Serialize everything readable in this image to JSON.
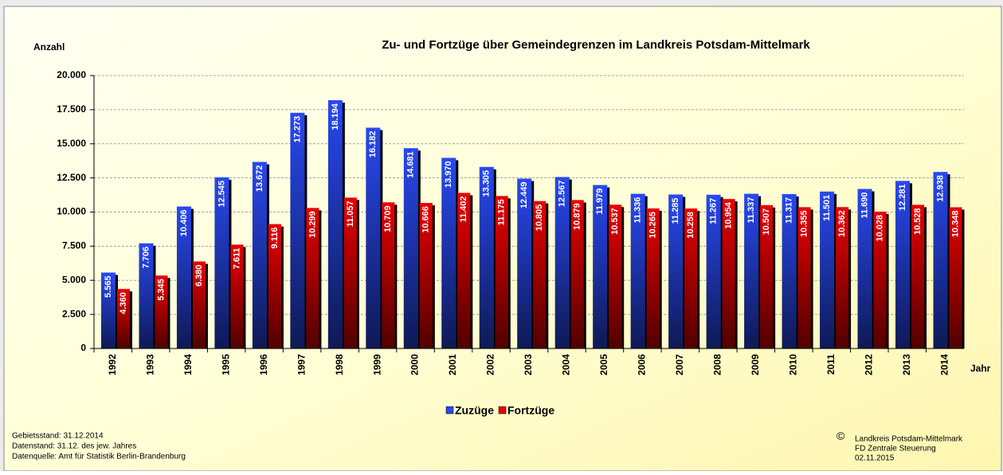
{
  "chart_data": {
    "type": "bar",
    "title": "Zu- und Fortzüge über Gemeindegrenzen im Landkreis Potsdam-Mittelmark",
    "y_label": "Anzahl",
    "x_label": "Jahr",
    "categories": [
      "1992",
      "1993",
      "1994",
      "1995",
      "1996",
      "1997",
      "1998",
      "1999",
      "2000",
      "2001",
      "2002",
      "2003",
      "2004",
      "2005",
      "2006",
      "2007",
      "2008",
      "2009",
      "2010",
      "2011",
      "2012",
      "2013",
      "2014"
    ],
    "series": [
      {
        "name": "Zuzüge",
        "color": "#2848f0",
        "values": [
          5565,
          7706,
          10406,
          12545,
          13672,
          17273,
          18194,
          16182,
          14681,
          13970,
          13305,
          12449,
          12567,
          11979,
          11336,
          11285,
          11267,
          11337,
          11317,
          11501,
          11690,
          12281,
          12938
        ],
        "value_labels": [
          "5.565",
          "7.706",
          "10.406",
          "12.545",
          "13.672",
          "17.273",
          "18.194",
          "16.182",
          "14.681",
          "13.970",
          "13.305",
          "12.449",
          "12.567",
          "11.979",
          "11.336",
          "11.285",
          "11.267",
          "11.337",
          "11.317",
          "11.501",
          "11.690",
          "12.281",
          "12.938"
        ]
      },
      {
        "name": "Fortzüge",
        "color": "#e80000",
        "values": [
          4360,
          5345,
          6380,
          7611,
          9116,
          10299,
          11057,
          10709,
          10666,
          11402,
          11175,
          10805,
          10879,
          10537,
          10265,
          10258,
          10954,
          10507,
          10355,
          10362,
          10028,
          10528,
          10348
        ],
        "value_labels": [
          "4.360",
          "5.345",
          "6.380",
          "7.611",
          "9.116",
          "10.299",
          "11.057",
          "10.709",
          "10.666",
          "11.402",
          "11.175",
          "10.805",
          "10.879",
          "10.537",
          "10.265",
          "10.258",
          "10.954",
          "10.507",
          "10.355",
          "10.362",
          "10.028",
          "10.528",
          "10.348"
        ]
      }
    ],
    "ylim": [
      0,
      20000
    ],
    "yticks": [
      0,
      {
        "value": 2500,
        "label": "2.500"
      },
      {
        "value": 5000,
        "label": "5.000"
      },
      {
        "value": 7500,
        "label": "7.500"
      },
      {
        "value": 10000,
        "label": "10.000"
      },
      {
        "value": 12500,
        "label": "12.500"
      },
      {
        "value": 15000,
        "label": "15.000"
      },
      {
        "value": 17500,
        "label": "17.500"
      },
      {
        "value": 20000,
        "label": "20.000"
      }
    ],
    "grid": true,
    "legend": "bottom",
    "notes": [
      "Gebietsstand: 31.12.2014",
      "Datenstand: 31.12. des jew. Jahres",
      "Datenquelle: Amt für Statistik Berlin-Brandenburg"
    ],
    "copyright": {
      "symbol": "©",
      "lines": [
        "Landkreis Potsdam-Mittelmark",
        "FD Zentrale Steuerung",
        "02.11.2015"
      ]
    }
  }
}
